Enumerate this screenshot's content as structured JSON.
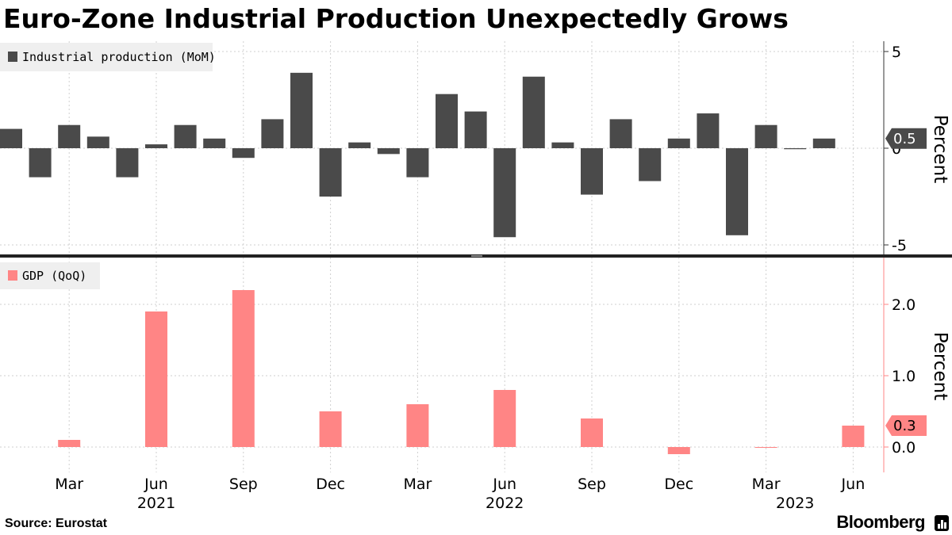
{
  "header": {
    "title": "Euro-Zone Industrial Production Unexpectedly Grows"
  },
  "footer": {
    "source": "Source: Eurostat",
    "brand": "Bloomberg"
  },
  "colors": {
    "ip_bar": "#4a4a4a",
    "gdp_bar": "#ff8585",
    "grid": "#cfcfcf",
    "axis_top": "#333333",
    "axis_bottom": "#ff8585"
  },
  "chart_data": [
    {
      "type": "bar",
      "legend": "Industrial production (MoM)",
      "ylabel": "Percent",
      "ylim": [
        -5.3,
        5.3
      ],
      "yticks": [
        "5",
        "0",
        "-5"
      ],
      "legend_position": "top-left",
      "grid": true,
      "latest_label": "0.5",
      "x": [
        "2021-01",
        "2021-02",
        "2021-03",
        "2021-04",
        "2021-05",
        "2021-06",
        "2021-07",
        "2021-08",
        "2021-09",
        "2021-10",
        "2021-11",
        "2021-12",
        "2022-01",
        "2022-02",
        "2022-03",
        "2022-04",
        "2022-05",
        "2022-06",
        "2022-07",
        "2022-08",
        "2022-09",
        "2022-10",
        "2022-11",
        "2022-12",
        "2023-01",
        "2023-02",
        "2023-03",
        "2023-04",
        "2023-05",
        "2023-06"
      ],
      "values": [
        1.0,
        -1.5,
        1.2,
        0.6,
        -1.5,
        0.2,
        1.2,
        0.5,
        -0.5,
        1.5,
        3.9,
        -2.5,
        0.3,
        -0.3,
        -1.5,
        2.8,
        1.9,
        -4.6,
        3.7,
        0.3,
        -2.4,
        1.5,
        -1.7,
        0.5,
        1.8,
        -4.5,
        1.2,
        -0.05,
        0.5,
        null
      ]
    },
    {
      "type": "bar",
      "legend": "GDP (QoQ)",
      "ylabel": "Percent",
      "ylim": [
        -0.35,
        2.6
      ],
      "yticks": [
        "2.0",
        "1.0",
        "0.0"
      ],
      "legend_position": "top-left",
      "grid": true,
      "latest_label": "0.3",
      "x": [
        "2021-03",
        "2021-06",
        "2021-09",
        "2021-12",
        "2022-03",
        "2022-06",
        "2022-09",
        "2022-12",
        "2023-03",
        "2023-06"
      ],
      "values": [
        0.1,
        1.9,
        2.2,
        0.5,
        0.6,
        0.8,
        0.4,
        -0.1,
        0.0,
        0.3
      ]
    }
  ],
  "xaxis": {
    "ticks": [
      {
        "label": "Mar",
        "month_index": 2
      },
      {
        "label": "Jun",
        "month_index": 5
      },
      {
        "label": "Sep",
        "month_index": 8
      },
      {
        "label": "Dec",
        "month_index": 11
      },
      {
        "label": "Mar",
        "month_index": 14
      },
      {
        "label": "Jun",
        "month_index": 17
      },
      {
        "label": "Sep",
        "month_index": 20
      },
      {
        "label": "Dec",
        "month_index": 23
      },
      {
        "label": "Mar",
        "month_index": 26
      },
      {
        "label": "Jun",
        "month_index": 29
      }
    ],
    "years": [
      {
        "label": "2021",
        "month_index": 5
      },
      {
        "label": "2022",
        "month_index": 17
      },
      {
        "label": "2023",
        "month_index": 27
      }
    ]
  }
}
